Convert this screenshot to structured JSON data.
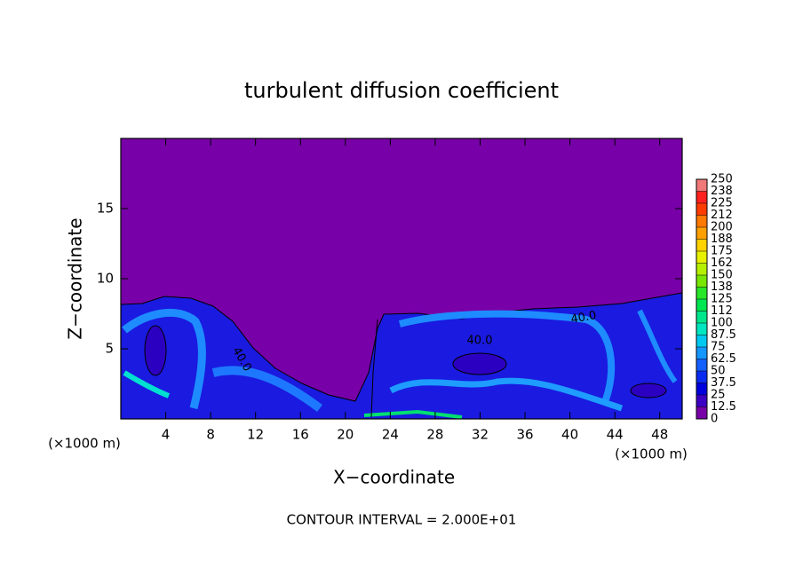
{
  "chart_data": {
    "type": "contour",
    "title": "turbulent diffusion coefficient",
    "x_label": "X−coordinate",
    "y_label": "Z−coordinate",
    "x_unit": "(×1000 m)",
    "footer": "CONTOUR INTERVAL = 2.000E+01",
    "contour_labels": [
      "40.0",
      "40.0",
      "40.0"
    ],
    "xlim": [
      0,
      50
    ],
    "ylim": [
      0,
      20
    ],
    "xticks": [
      4,
      8,
      12,
      16,
      20,
      24,
      28,
      32,
      36,
      40,
      44,
      48
    ],
    "yticks": [
      5,
      10,
      15
    ],
    "colorbar": {
      "ticks": [
        0,
        12.5,
        25,
        37.5,
        50,
        62.5,
        75,
        87.5,
        100,
        {
          "value": 112.5,
          "label": "112"
        },
        125,
        {
          "value": 137.5,
          "label": "138"
        },
        150,
        {
          "value": 162.5,
          "label": "162"
        },
        175,
        {
          "value": 187.5,
          "label": "188"
        },
        200,
        {
          "value": 212.5,
          "label": "212"
        },
        225,
        {
          "value": 237.5,
          "label": "238"
        },
        250
      ],
      "colors": [
        "#7800a8",
        "#3c00c4",
        "#0000dc",
        "#0a2cf0",
        "#1460ff",
        "#1496ff",
        "#00c8f0",
        "#00e6c0",
        "#00e68c",
        "#00e650",
        "#28e628",
        "#78e600",
        "#b4f000",
        "#e6f000",
        "#ffd200",
        "#ffa000",
        "#ff7800",
        "#ff3c00",
        "#ff2020",
        "#f07878"
      ]
    }
  }
}
